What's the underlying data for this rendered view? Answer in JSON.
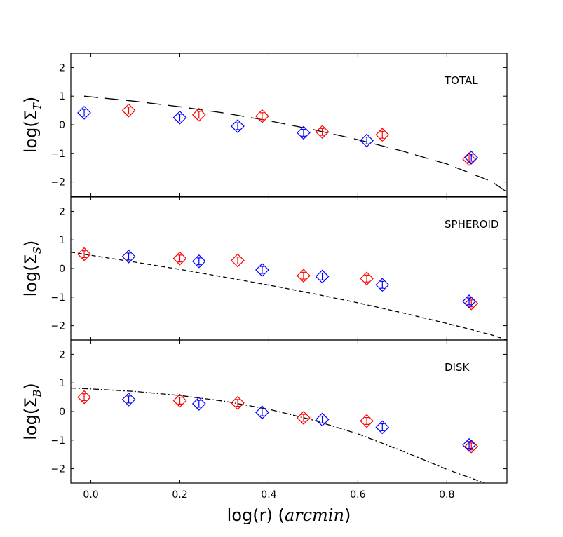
{
  "chart_data": {
    "type": "scatter",
    "shared_x": {
      "xlabel_prefix": "log(r) (",
      "xlabel_unit": "arcmin",
      "xlabel_suffix": ")",
      "xlim": [
        -0.045,
        0.935
      ],
      "xticks": [
        0.0,
        0.2,
        0.4,
        0.6,
        0.8
      ],
      "xtick_labels": [
        "0.0",
        "0.2",
        "0.4",
        "0.6",
        "0.8"
      ]
    },
    "ylim": [
      -2.5,
      2.5
    ],
    "yticks": [
      2,
      1,
      0,
      -1,
      -2
    ],
    "ytick_labels": [
      "2",
      "1",
      "0",
      "−1",
      "−2"
    ],
    "colors": {
      "series_red": "#ff0000",
      "series_blue": "#0000ff",
      "model": "#000000"
    },
    "panels": [
      {
        "label": "TOTAL",
        "ylabel_main": "log(Σ",
        "ylabel_sub": "T",
        "ylabel_close": ")",
        "model_style": "long-dash",
        "model_curve": {
          "x": [
            -0.015,
            0.1,
            0.2,
            0.3,
            0.4,
            0.5,
            0.6,
            0.7,
            0.8,
            0.9,
            0.935
          ],
          "y": [
            1.0,
            0.82,
            0.63,
            0.41,
            0.14,
            -0.17,
            -0.52,
            -0.92,
            -1.37,
            -1.98,
            -2.35
          ]
        },
        "series": [
          {
            "color": "red",
            "x": [
              0.085,
              0.243,
              0.385,
              0.52,
              0.655,
              0.85
            ],
            "y": [
              0.5,
              0.35,
              0.3,
              -0.25,
              -0.35,
              -1.2
            ],
            "err": [
              0.12,
              0.12,
              0.12,
              0.12,
              0.12,
              0.12
            ]
          },
          {
            "color": "blue",
            "x": [
              -0.015,
              0.2,
              0.33,
              0.478,
              0.62,
              0.855
            ],
            "y": [
              0.42,
              0.25,
              -0.05,
              -0.28,
              -0.55,
              -1.15
            ],
            "err": [
              0.12,
              0.12,
              0.12,
              0.12,
              0.12,
              0.12
            ]
          }
        ]
      },
      {
        "label": "SPHEROID",
        "ylabel_main": "log(Σ",
        "ylabel_sub": "S",
        "ylabel_close": ")",
        "model_style": "short-dash",
        "model_curve": {
          "x": [
            -0.045,
            0.1,
            0.2,
            0.3,
            0.4,
            0.5,
            0.6,
            0.7,
            0.8,
            0.9,
            0.935
          ],
          "y": [
            0.57,
            0.22,
            -0.03,
            -0.3,
            -0.58,
            -0.88,
            -1.2,
            -1.55,
            -1.92,
            -2.32,
            -2.5
          ]
        },
        "series": [
          {
            "color": "red",
            "x": [
              -0.015,
              0.2,
              0.33,
              0.478,
              0.62,
              0.855
            ],
            "y": [
              0.5,
              0.35,
              0.28,
              -0.25,
              -0.35,
              -1.22
            ],
            "err": [
              0.12,
              0.12,
              0.12,
              0.12,
              0.12,
              0.12
            ]
          },
          {
            "color": "blue",
            "x": [
              0.085,
              0.243,
              0.385,
              0.52,
              0.655,
              0.85
            ],
            "y": [
              0.42,
              0.25,
              -0.05,
              -0.28,
              -0.57,
              -1.15
            ],
            "err": [
              0.12,
              0.12,
              0.12,
              0.12,
              0.12,
              0.12
            ]
          }
        ]
      },
      {
        "label": "DISK",
        "ylabel_main": "log(Σ",
        "ylabel_sub": "B",
        "ylabel_close": ")",
        "model_style": "dash-dot",
        "model_curve": {
          "x": [
            -0.045,
            0.0,
            0.1,
            0.2,
            0.3,
            0.4,
            0.5,
            0.6,
            0.7,
            0.8,
            0.885
          ],
          "y": [
            0.82,
            0.79,
            0.7,
            0.56,
            0.36,
            0.08,
            -0.3,
            -0.78,
            -1.38,
            -2.02,
            -2.5
          ]
        },
        "series": [
          {
            "color": "red",
            "x": [
              -0.015,
              0.2,
              0.33,
              0.478,
              0.62,
              0.855
            ],
            "y": [
              0.5,
              0.38,
              0.3,
              -0.22,
              -0.33,
              -1.22
            ],
            "err": [
              0.12,
              0.12,
              0.12,
              0.12,
              0.12,
              0.12
            ]
          },
          {
            "color": "blue",
            "x": [
              0.085,
              0.243,
              0.385,
              0.52,
              0.655,
              0.85
            ],
            "y": [
              0.42,
              0.27,
              -0.03,
              -0.28,
              -0.55,
              -1.17
            ],
            "err": [
              0.12,
              0.12,
              0.12,
              0.12,
              0.12,
              0.12
            ]
          }
        ]
      }
    ]
  }
}
